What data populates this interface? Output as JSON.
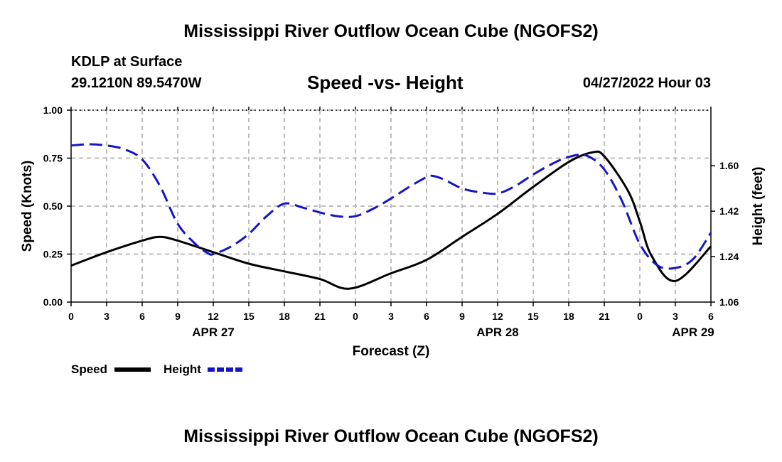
{
  "header": {
    "title": "Mississippi River Outflow Ocean Cube (NGOFS2)",
    "station": "KDLP at Surface",
    "coords": "29.1210N  89.5470W",
    "subtitle": "Speed -vs- Height",
    "datetime": "04/27/2022 Hour 03"
  },
  "footer": {
    "title": "Mississippi River Outflow Ocean Cube (NGOFS2)"
  },
  "legend": {
    "speed_label": "Speed",
    "height_label": "Height"
  },
  "chart_data": {
    "type": "line",
    "title": "Speed -vs- Height",
    "xlabel": "Forecast (Z)",
    "ylabel": "Speed (Knots)",
    "y2label": "Height (feet)",
    "x_range_hours": [
      0,
      54
    ],
    "x_tick_hours": [
      0,
      3,
      6,
      9,
      12,
      15,
      18,
      21,
      24,
      27,
      30,
      33,
      36,
      39,
      42,
      45,
      48,
      51,
      54
    ],
    "x_tick_labels": [
      "0",
      "3",
      "6",
      "9",
      "12",
      "15",
      "18",
      "21",
      "0",
      "3",
      "6",
      "9",
      "12",
      "15",
      "18",
      "21",
      "0",
      "3",
      "6"
    ],
    "date_labels": [
      {
        "label": "APR 27",
        "hour": 12
      },
      {
        "label": "APR 28",
        "hour": 36
      },
      {
        "label": "APR 29",
        "hour": 52.5
      }
    ],
    "ylim": [
      0,
      1
    ],
    "y_ticks": [
      0,
      0.25,
      0.5,
      0.75,
      1.0
    ],
    "y_tick_labels": [
      "0.00",
      "0.25",
      "0.50",
      "0.75",
      "1.00"
    ],
    "y2lim": [
      1.06,
      1.82
    ],
    "y2_ticks": [
      1.06,
      1.24,
      1.42,
      1.6
    ],
    "y2_tick_labels": [
      "1.06",
      "1.24",
      "1.42",
      "1.60"
    ],
    "grid": true,
    "series": [
      {
        "name": "Speed",
        "axis": "left",
        "color": "#000000",
        "dash": "solid",
        "x": [
          0,
          3,
          6,
          7.5,
          9,
          12,
          15,
          18,
          21,
          23.5,
          27,
          30,
          33,
          36,
          39,
          42,
          44,
          45,
          47,
          48,
          49,
          51,
          54
        ],
        "y": [
          0.19,
          0.26,
          0.32,
          0.34,
          0.32,
          0.26,
          0.2,
          0.16,
          0.12,
          0.07,
          0.15,
          0.22,
          0.34,
          0.46,
          0.6,
          0.73,
          0.78,
          0.76,
          0.58,
          0.42,
          0.24,
          0.11,
          0.29
        ]
      },
      {
        "name": "Height",
        "axis": "right",
        "color": "#1515c8",
        "dash": "dashed",
        "x": [
          0,
          1.5,
          3,
          4.5,
          6,
          7.5,
          9,
          10.5,
          11.5,
          12,
          13.5,
          15,
          16.5,
          18,
          19.5,
          21,
          22.5,
          24,
          25.5,
          27,
          28.5,
          30,
          30.5,
          31.5,
          33,
          34.5,
          36,
          37.5,
          39,
          40.5,
          42,
          43.5,
          45,
          46.5,
          48,
          49.5,
          51,
          52.5,
          54
        ],
        "y": [
          1.68,
          1.685,
          1.68,
          1.665,
          1.625,
          1.52,
          1.37,
          1.29,
          1.255,
          1.25,
          1.28,
          1.33,
          1.4,
          1.45,
          1.435,
          1.415,
          1.4,
          1.4,
          1.43,
          1.47,
          1.515,
          1.555,
          1.56,
          1.545,
          1.51,
          1.495,
          1.49,
          1.52,
          1.565,
          1.605,
          1.635,
          1.64,
          1.585,
          1.46,
          1.29,
          1.205,
          1.195,
          1.23,
          1.335
        ]
      }
    ]
  }
}
